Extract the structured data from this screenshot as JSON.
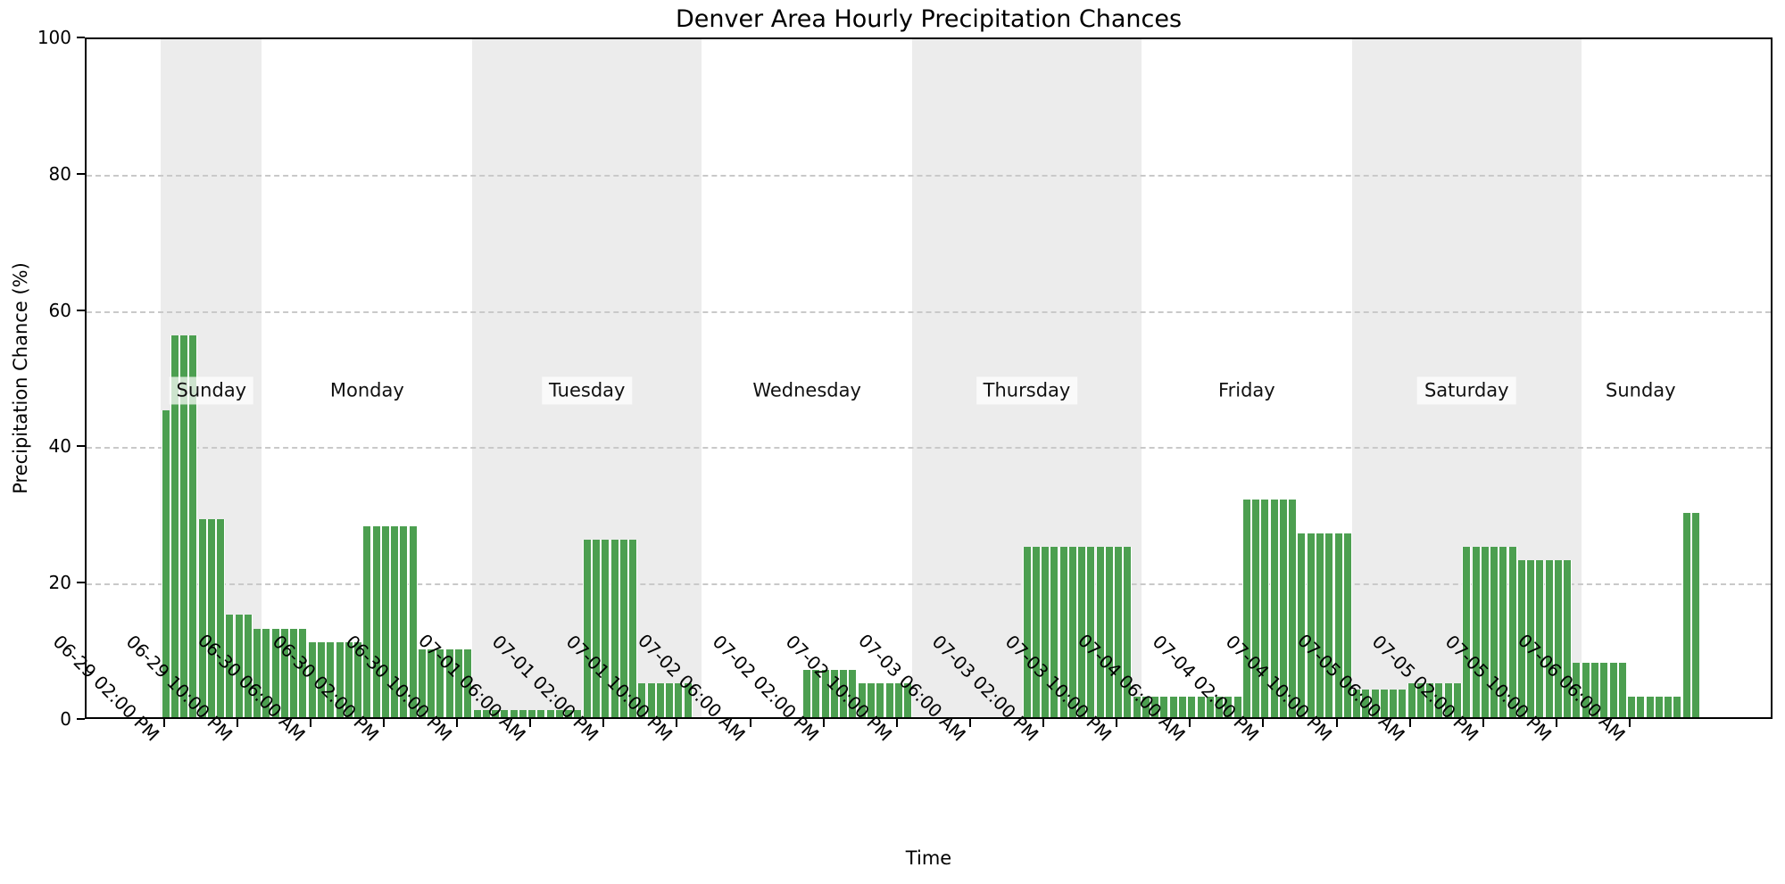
{
  "chart_data": {
    "type": "bar",
    "title": "Denver Area Hourly Precipitation Chances",
    "xlabel": "Time",
    "ylabel": "Precipitation Chance (%)",
    "ylim": [
      0,
      100
    ],
    "yticks": [
      0,
      20,
      40,
      60,
      80,
      100
    ],
    "grid": "horizontal-dashed",
    "legend": "none",
    "bar_color": "#4C9F50",
    "shaded_band_color": "#ECECEC",
    "x_unit": "hourly bars, one bar per hour",
    "x_tick_interval_hours": 8,
    "x_tick_labels": [
      "06-29 02:00 PM",
      "06-29 10:00 PM",
      "06-30 06:00 AM",
      "06-30 02:00 PM",
      "06-30 10:00 PM",
      "07-01 06:00 AM",
      "07-01 02:00 PM",
      "07-01 10:00 PM",
      "07-02 06:00 AM",
      "07-02 02:00 PM",
      "07-02 10:00 PM",
      "07-03 06:00 AM",
      "07-03 02:00 PM",
      "07-03 10:00 PM",
      "07-04 06:00 AM",
      "07-04 02:00 PM",
      "07-04 10:00 PM",
      "07-05 06:00 AM",
      "07-05 02:00 PM",
      "07-05 10:00 PM",
      "07-06 06:00 AM"
    ],
    "days": [
      {
        "date": "06-29",
        "weekday": "Sunday",
        "shaded": true,
        "first_hour": 14,
        "values": [
          45,
          56,
          56,
          56,
          29,
          29,
          29,
          15,
          15,
          15
        ]
      },
      {
        "date": "06-30",
        "weekday": "Monday",
        "shaded": false,
        "first_hour": 0,
        "values": [
          13,
          13,
          13,
          13,
          13,
          13,
          11,
          11,
          11,
          11,
          11,
          11,
          28,
          28,
          28,
          28,
          28,
          28,
          10,
          10,
          10,
          10,
          10,
          10
        ]
      },
      {
        "date": "07-01",
        "weekday": "Tuesday",
        "shaded": true,
        "first_hour": 0,
        "values": [
          1,
          1,
          1,
          1,
          1,
          1,
          1,
          1,
          1,
          1,
          1,
          1,
          26,
          26,
          26,
          26,
          26,
          26,
          5,
          5,
          5,
          5,
          5,
          5
        ]
      },
      {
        "date": "07-02",
        "weekday": "Wednesday",
        "shaded": false,
        "first_hour": 0,
        "values": [
          0,
          0,
          0,
          0,
          0,
          0,
          0,
          0,
          0,
          0,
          0,
          0,
          7,
          7,
          7,
          7,
          7,
          7,
          5,
          5,
          5,
          5,
          5,
          5
        ]
      },
      {
        "date": "07-03",
        "weekday": "Thursday",
        "shaded": true,
        "first_hour": 0,
        "values": [
          0,
          0,
          0,
          0,
          0,
          0,
          0,
          0,
          0,
          0,
          0,
          0,
          25,
          25,
          25,
          25,
          25,
          25,
          25,
          25,
          25,
          25,
          25,
          25
        ]
      },
      {
        "date": "07-04",
        "weekday": "Friday",
        "shaded": false,
        "first_hour": 0,
        "values": [
          3,
          3,
          3,
          3,
          3,
          3,
          3,
          3,
          3,
          3,
          3,
          3,
          32,
          32,
          32,
          32,
          32,
          32,
          27,
          27,
          27,
          27,
          27,
          27
        ]
      },
      {
        "date": "07-05",
        "weekday": "Saturday",
        "shaded": true,
        "first_hour": 0,
        "values": [
          4,
          4,
          4,
          4,
          4,
          4,
          5,
          5,
          5,
          5,
          5,
          5,
          25,
          25,
          25,
          25,
          25,
          25,
          23,
          23,
          23,
          23,
          23,
          23
        ]
      },
      {
        "date": "07-06",
        "weekday": "Sunday",
        "shaded": false,
        "first_hour": 0,
        "values": [
          8,
          8,
          8,
          8,
          8,
          8,
          3,
          3,
          3,
          3,
          3,
          3,
          30,
          30
        ]
      }
    ]
  }
}
